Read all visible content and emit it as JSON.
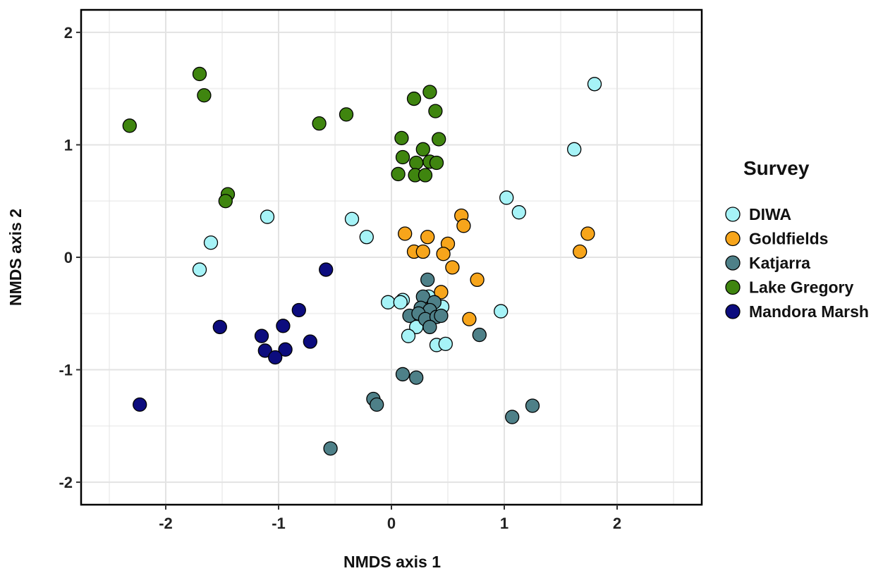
{
  "chart_data": {
    "type": "scatter",
    "xlabel": "NMDS axis 1",
    "ylabel": "NMDS axis 2",
    "xlim": [
      -2.75,
      2.75
    ],
    "ylim": [
      -2.2,
      2.2
    ],
    "x_ticks": [
      -2,
      -1,
      0,
      1,
      2
    ],
    "y_ticks": [
      -2,
      -1,
      0,
      1,
      2
    ],
    "grid": true,
    "legend": {
      "title": "Survey",
      "placement": "right"
    },
    "series": [
      {
        "name": "DIWA",
        "color": "#a6f3f7",
        "x": [
          1.8,
          1.62,
          1.02,
          1.13,
          -1.1,
          -0.35,
          -0.22,
          -1.6,
          -1.7,
          0.1,
          -0.03,
          0.08,
          0.33,
          0.45,
          0.22,
          0.15,
          0.4,
          0.48,
          0.97
        ],
        "y": [
          1.54,
          0.96,
          0.53,
          0.4,
          0.36,
          0.34,
          0.18,
          0.13,
          -0.11,
          -0.38,
          -0.4,
          -0.4,
          -0.35,
          -0.44,
          -0.62,
          -0.7,
          -0.78,
          -0.77,
          -0.48
        ]
      },
      {
        "name": "Goldfields",
        "color": "#f7a51b",
        "x": [
          0.12,
          0.32,
          0.62,
          0.64,
          0.5,
          0.2,
          0.28,
          0.46,
          0.54,
          0.76,
          0.44,
          0.69,
          1.74,
          1.67
        ],
        "y": [
          0.21,
          0.18,
          0.37,
          0.28,
          0.12,
          0.05,
          0.05,
          0.03,
          -0.09,
          -0.2,
          -0.31,
          -0.55,
          0.21,
          0.05
        ]
      },
      {
        "name": "Katjarra",
        "color": "#4e8088",
        "x": [
          0.32,
          0.28,
          0.38,
          0.26,
          0.34,
          0.16,
          0.24,
          0.3,
          0.4,
          0.44,
          0.34,
          0.78,
          0.1,
          0.22,
          -0.16,
          -0.13,
          -0.54,
          1.07,
          1.25
        ],
        "y": [
          -0.2,
          -0.35,
          -0.4,
          -0.45,
          -0.47,
          -0.52,
          -0.5,
          -0.55,
          -0.53,
          -0.52,
          -0.62,
          -0.69,
          -1.04,
          -1.07,
          -1.26,
          -1.31,
          -1.7,
          -1.42,
          -1.32
        ]
      },
      {
        "name": "Lake Gregory",
        "color": "#3f850f",
        "x": [
          -1.7,
          -1.66,
          -2.32,
          -0.64,
          -0.4,
          0.2,
          0.34,
          0.39,
          0.09,
          0.28,
          0.42,
          0.1,
          0.22,
          0.34,
          0.4,
          0.06,
          0.21,
          0.3,
          -1.45,
          -1.47
        ],
        "y": [
          1.63,
          1.44,
          1.17,
          1.19,
          1.27,
          1.41,
          1.47,
          1.3,
          1.06,
          0.96,
          1.05,
          0.89,
          0.84,
          0.85,
          0.84,
          0.74,
          0.73,
          0.73,
          0.56,
          0.5
        ]
      },
      {
        "name": "Mandora Marsh",
        "color": "#0c0c7e",
        "x": [
          -0.58,
          -0.82,
          -1.52,
          -0.96,
          -1.15,
          -1.12,
          -0.94,
          -1.03,
          -0.72,
          -2.23
        ],
        "y": [
          -0.11,
          -0.47,
          -0.62,
          -0.61,
          -0.7,
          -0.83,
          -0.82,
          -0.89,
          -0.75,
          -1.31
        ]
      }
    ]
  }
}
